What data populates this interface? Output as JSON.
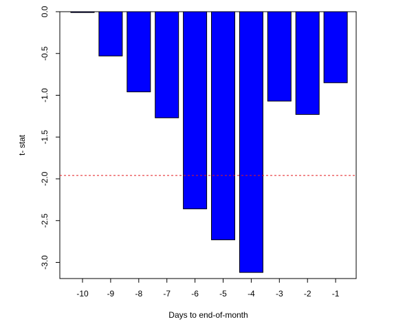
{
  "chart_data": {
    "type": "bar",
    "categories": [
      "-10",
      "-9",
      "-8",
      "-7",
      "-6",
      "-5",
      "-4",
      "-3",
      "-2",
      "-1"
    ],
    "values": [
      -0.01,
      -0.53,
      -0.96,
      -1.27,
      -2.36,
      -2.73,
      -3.12,
      -1.07,
      -1.23,
      -0.85
    ],
    "xlabel": "Days to end-of-month",
    "ylabel": "t- stat",
    "ylim": [
      -3.2,
      0.0
    ],
    "yticks": [
      "0.0",
      "-0.5",
      "-1.0",
      "-1.5",
      "-2.0",
      "-2.5",
      "-3.0"
    ],
    "reference_line": {
      "y": -1.96,
      "style": "dashed",
      "color": "#e41a1c"
    },
    "bar_color": "#0000ff",
    "bar_edge_color": "#000000",
    "grid": false,
    "legend": "none"
  }
}
